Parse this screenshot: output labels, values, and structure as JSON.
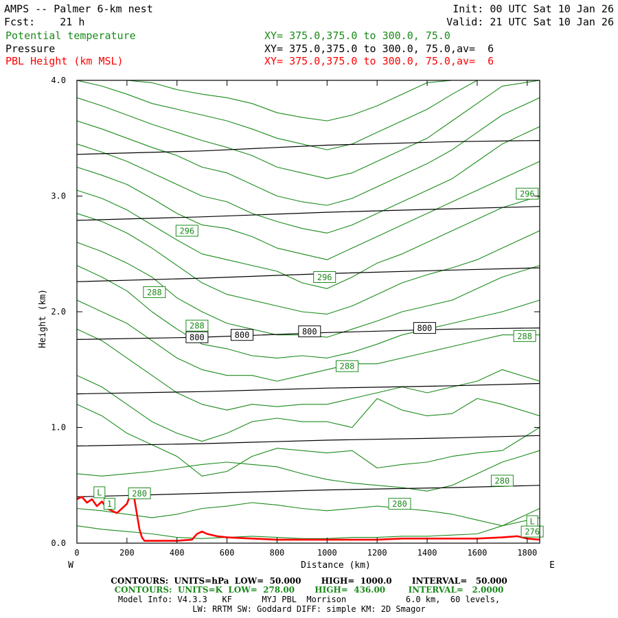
{
  "header": {
    "title": "AMPS -- Palmer 6-km nest",
    "forecast": "Fcst:    21 h",
    "init": "Init: 00 UTC Sat 10 Jan 26",
    "valid": "Valid: 21 UTC Sat 10 Jan 26",
    "field1": {
      "name": "Potential temperature",
      "xy": "XY= 375.0,375.0 to 300.0, 75.0"
    },
    "field2": {
      "name": "Pressure",
      "xy": "XY= 375.0,375.0 to 300.0, 75.0,av=  6"
    },
    "field3": {
      "name": "PBL Height (km MSL)",
      "xy": "XY= 375.0,375.0 to 300.0, 75.0,av=  6"
    }
  },
  "colors": {
    "theta": "#1a8a1a",
    "pressure": "#000000",
    "pbl": "#ff0000"
  },
  "chart_data": {
    "type": "line",
    "xlabel": "Distance (km)",
    "ylabel": "Height (km)",
    "xlim": [
      0,
      1850
    ],
    "ylim": [
      0,
      4.0
    ],
    "x_ticks": [
      0,
      200,
      400,
      600,
      800,
      1000,
      1200,
      1400,
      1600,
      1800
    ],
    "y_ticks": [
      0.0,
      1.0,
      2.0,
      3.0,
      4.0
    ],
    "y_tick_labels": [
      "0.0",
      "1.0",
      "2.0",
      "3.0",
      "4.0"
    ],
    "west_label": "W",
    "east_label": "E",
    "pressure_contours": [
      {
        "y": [
          0.4,
          0.43,
          0.46,
          0.48,
          0.5
        ]
      },
      {
        "y": [
          0.84,
          0.86,
          0.89,
          0.91,
          0.93
        ]
      },
      {
        "y": [
          1.29,
          1.31,
          1.34,
          1.36,
          1.38
        ]
      },
      {
        "y": [
          1.76,
          1.78,
          1.82,
          1.85,
          1.86
        ]
      },
      {
        "y": [
          2.26,
          2.29,
          2.33,
          2.36,
          2.38
        ]
      },
      {
        "y": [
          2.79,
          2.82,
          2.86,
          2.89,
          2.91
        ]
      },
      {
        "y": [
          3.36,
          3.39,
          3.44,
          3.47,
          3.48
        ]
      }
    ],
    "pressure_x": [
      0,
      500,
      1000,
      1500,
      1850
    ],
    "theta_x": [
      0,
      100,
      200,
      300,
      400,
      500,
      600,
      700,
      800,
      900,
      1000,
      1100,
      1200,
      1300,
      1400,
      1500,
      1600,
      1700,
      1850
    ],
    "theta_contours": [
      {
        "y": [
          0.15,
          0.12,
          0.1,
          0.08,
          0.05,
          0.04,
          0.05,
          0.06,
          0.05,
          0.04,
          0.04,
          0.05,
          0.05,
          0.06,
          0.06,
          0.07,
          0.08,
          0.15,
          0.22
        ]
      },
      {
        "y": [
          0.3,
          0.28,
          0.25,
          0.22,
          0.25,
          0.3,
          0.32,
          0.35,
          0.33,
          0.3,
          0.28,
          0.3,
          0.32,
          0.3,
          0.28,
          0.25,
          0.2,
          0.15,
          0.3
        ]
      },
      {
        "y": [
          0.6,
          0.58,
          0.6,
          0.62,
          0.65,
          0.68,
          0.7,
          0.68,
          0.66,
          0.6,
          0.55,
          0.52,
          0.5,
          0.48,
          0.45,
          0.5,
          0.6,
          0.7,
          0.8
        ]
      },
      {
        "y": [
          1.2,
          1.1,
          0.95,
          0.85,
          0.75,
          0.58,
          0.62,
          0.75,
          0.82,
          0.8,
          0.78,
          0.8,
          0.65,
          0.68,
          0.7,
          0.75,
          0.78,
          0.8,
          1.0
        ]
      },
      {
        "y": [
          1.45,
          1.35,
          1.2,
          1.05,
          0.95,
          0.88,
          0.95,
          1.05,
          1.08,
          1.05,
          1.05,
          1.0,
          1.25,
          1.15,
          1.1,
          1.12,
          1.25,
          1.2,
          1.1
        ]
      },
      {
        "y": [
          1.85,
          1.75,
          1.6,
          1.45,
          1.3,
          1.2,
          1.15,
          1.2,
          1.18,
          1.2,
          1.2,
          1.25,
          1.3,
          1.35,
          1.3,
          1.35,
          1.4,
          1.5,
          1.4
        ]
      },
      {
        "y": [
          2.1,
          2.0,
          1.9,
          1.75,
          1.6,
          1.5,
          1.45,
          1.45,
          1.4,
          1.45,
          1.5,
          1.55,
          1.55,
          1.6,
          1.65,
          1.7,
          1.75,
          1.8,
          1.8
        ]
      },
      {
        "y": [
          2.4,
          2.3,
          2.18,
          2.0,
          1.85,
          1.72,
          1.68,
          1.62,
          1.6,
          1.62,
          1.6,
          1.65,
          1.72,
          1.8,
          1.85,
          1.9,
          1.95,
          2.0,
          2.1
        ]
      },
      {
        "y": [
          2.6,
          2.52,
          2.42,
          2.3,
          2.12,
          2.0,
          1.9,
          1.85,
          1.8,
          1.8,
          1.78,
          1.85,
          1.92,
          2.0,
          2.05,
          2.1,
          2.2,
          2.3,
          2.4
        ]
      },
      {
        "y": [
          2.85,
          2.78,
          2.68,
          2.55,
          2.4,
          2.25,
          2.15,
          2.1,
          2.05,
          2.0,
          1.98,
          2.05,
          2.15,
          2.25,
          2.32,
          2.38,
          2.45,
          2.55,
          2.7
        ]
      },
      {
        "y": [
          3.05,
          2.98,
          2.88,
          2.75,
          2.62,
          2.5,
          2.45,
          2.4,
          2.35,
          2.25,
          2.2,
          2.3,
          2.42,
          2.5,
          2.6,
          2.7,
          2.8,
          2.9,
          3.0
        ]
      },
      {
        "y": [
          3.25,
          3.18,
          3.1,
          2.98,
          2.85,
          2.75,
          2.72,
          2.65,
          2.55,
          2.5,
          2.45,
          2.55,
          2.65,
          2.75,
          2.85,
          2.95,
          3.05,
          3.15,
          3.3
        ]
      },
      {
        "y": [
          3.45,
          3.38,
          3.3,
          3.2,
          3.1,
          3.0,
          2.95,
          2.85,
          2.78,
          2.72,
          2.68,
          2.75,
          2.85,
          2.95,
          3.05,
          3.15,
          3.3,
          3.45,
          3.6
        ]
      },
      {
        "y": [
          3.65,
          3.58,
          3.5,
          3.42,
          3.35,
          3.25,
          3.2,
          3.1,
          3.0,
          2.95,
          2.92,
          2.98,
          3.08,
          3.18,
          3.28,
          3.4,
          3.55,
          3.7,
          3.85
        ]
      },
      {
        "y": [
          3.85,
          3.78,
          3.7,
          3.62,
          3.55,
          3.48,
          3.42,
          3.35,
          3.25,
          3.2,
          3.15,
          3.2,
          3.3,
          3.4,
          3.5,
          3.65,
          3.8,
          3.95,
          4.0
        ]
      },
      {
        "y": [
          4.0,
          3.95,
          3.88,
          3.8,
          3.75,
          3.7,
          3.65,
          3.58,
          3.5,
          3.45,
          3.4,
          3.45,
          3.55,
          3.65,
          3.75,
          3.88,
          4.0,
          4.0,
          4.0
        ]
      },
      {
        "y": [
          4.0,
          4.0,
          4.0,
          3.98,
          3.92,
          3.88,
          3.85,
          3.8,
          3.72,
          3.68,
          3.65,
          3.7,
          3.78,
          3.88,
          3.98,
          4.0,
          4.0,
          4.0,
          4.0
        ]
      }
    ],
    "pbl": {
      "x": [
        0,
        20,
        40,
        60,
        80,
        100,
        120,
        140,
        160,
        180,
        200,
        210,
        220,
        230,
        240,
        250,
        260,
        270,
        280,
        300,
        400,
        460,
        480,
        500,
        520,
        560,
        600,
        700,
        800,
        1000,
        1200,
        1300,
        1400,
        1500,
        1600,
        1700,
        1760,
        1800,
        1850
      ],
      "y": [
        0.38,
        0.4,
        0.35,
        0.38,
        0.32,
        0.36,
        0.3,
        0.28,
        0.26,
        0.3,
        0.34,
        0.4,
        0.45,
        0.38,
        0.25,
        0.12,
        0.05,
        0.02,
        0.02,
        0.02,
        0.02,
        0.03,
        0.08,
        0.1,
        0.08,
        0.06,
        0.05,
        0.04,
        0.03,
        0.03,
        0.03,
        0.04,
        0.04,
        0.04,
        0.04,
        0.05,
        0.06,
        0.04,
        0.03
      ]
    },
    "annotations": [
      {
        "text": "800",
        "x": 480,
        "y": 1.78,
        "color": "#000000"
      },
      {
        "text": "800",
        "x": 660,
        "y": 1.8,
        "color": "#000000"
      },
      {
        "text": "800",
        "x": 930,
        "y": 1.83,
        "color": "#000000"
      },
      {
        "text": "800",
        "x": 1390,
        "y": 1.86,
        "color": "#000000"
      },
      {
        "text": "296",
        "x": 440,
        "y": 2.7,
        "color": "#1a8a1a"
      },
      {
        "text": "296",
        "x": 990,
        "y": 2.3,
        "color": "#1a8a1a"
      },
      {
        "text": "296",
        "x": 1800,
        "y": 3.02,
        "color": "#1a8a1a"
      },
      {
        "text": "288",
        "x": 310,
        "y": 2.17,
        "color": "#1a8a1a"
      },
      {
        "text": "288",
        "x": 480,
        "y": 1.88,
        "color": "#1a8a1a"
      },
      {
        "text": "288",
        "x": 1080,
        "y": 1.53,
        "color": "#1a8a1a"
      },
      {
        "text": "288",
        "x": 1790,
        "y": 1.79,
        "color": "#1a8a1a"
      },
      {
        "text": "280",
        "x": 250,
        "y": 0.43,
        "color": "#1a8a1a"
      },
      {
        "text": "280",
        "x": 1290,
        "y": 0.34,
        "color": "#1a8a1a"
      },
      {
        "text": "280",
        "x": 1700,
        "y": 0.54,
        "color": "#1a8a1a"
      },
      {
        "text": "L",
        "x": 90,
        "y": 0.44,
        "color": "#1a8a1a"
      },
      {
        "text": "L",
        "x": 1820,
        "y": 0.19,
        "color": "#1a8a1a"
      },
      {
        "text": "276",
        "x": 1820,
        "y": 0.1,
        "color": "#1a8a1a"
      },
      {
        "text": "1",
        "x": 130,
        "y": 0.34,
        "color": "#1a8a1a"
      }
    ]
  },
  "footer": {
    "line1": "CONTOURS:  UNITS=hPa  LOW=  50.000       HIGH=  1000.0       INTERVAL=   50.000",
    "line2": "CONTOURS:  UNITS=K  LOW=  278.00       HIGH=  436.00        INTERVAL=   2.0000",
    "line3": "Model Info: V4.3.3   KF      MYJ PBL  Morrison            6.0 km,  60 levels,",
    "line4": "LW: RRTM SW: Goddard DIFF: simple KM: 2D Smagor"
  }
}
